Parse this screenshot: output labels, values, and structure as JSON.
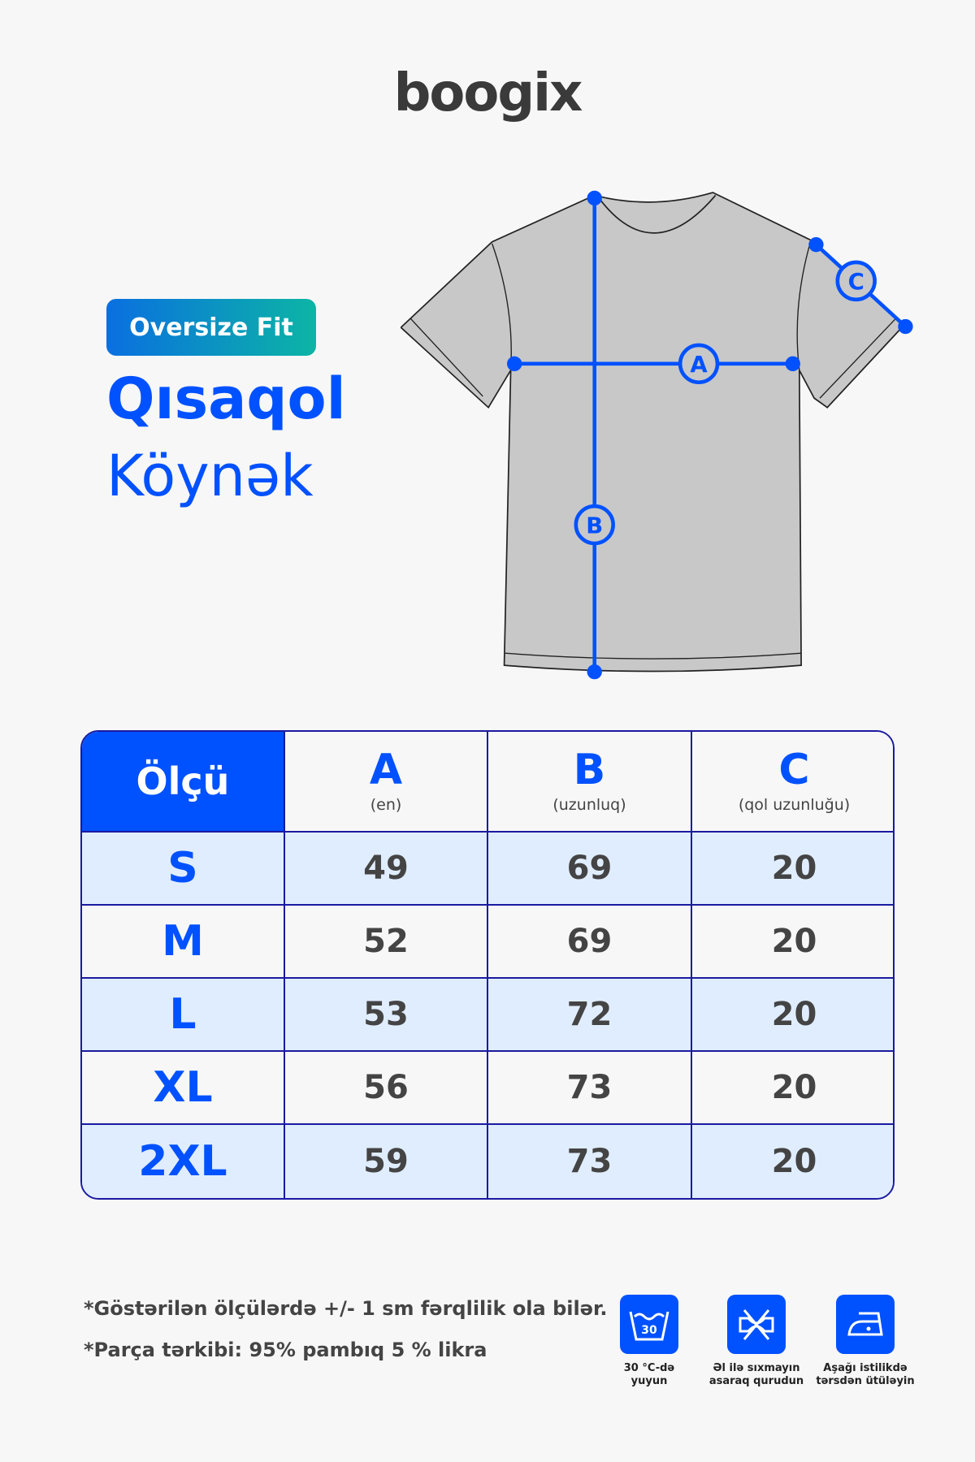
{
  "brand": "boogix",
  "badge": "Oversize Fit",
  "title_line1": "Qısaqol",
  "title_line2": "Köynək",
  "diagram": {
    "labels": [
      "A",
      "B",
      "C"
    ],
    "line_color": "#0051ff",
    "shirt_color": "#c8c8c8"
  },
  "table": {
    "header": {
      "size_label": "Ölçü",
      "columns": [
        {
          "letter": "A",
          "desc": "(en)"
        },
        {
          "letter": "B",
          "desc": "(uzunluq)"
        },
        {
          "letter": "C",
          "desc": "(qol uzunluğu)"
        }
      ]
    },
    "rows": [
      {
        "size": "S",
        "a": "49",
        "b": "69",
        "c": "20"
      },
      {
        "size": "M",
        "a": "52",
        "b": "69",
        "c": "20"
      },
      {
        "size": "L",
        "a": "53",
        "b": "72",
        "c": "20"
      },
      {
        "size": "XL",
        "a": "56",
        "b": "73",
        "c": "20"
      },
      {
        "size": "2XL",
        "a": "59",
        "b": "73",
        "c": "20"
      }
    ]
  },
  "notes": [
    "*Göstərilən ölçülərdə +/- 1 sm fərqlilik ola bilər.",
    "*Parça tərkibi: 95% pambıq 5 % likra"
  ],
  "care": [
    {
      "icon": "wash-30-icon",
      "temp": "30",
      "label1": "30 °C-də",
      "label2": "yuyun"
    },
    {
      "icon": "no-wring-icon",
      "label1": "Əl ilə sıxmayın",
      "label2": "asaraq qurudun"
    },
    {
      "icon": "iron-low-icon",
      "label1": "Aşağı istilikdə",
      "label2": "tərsdən ütüləyin"
    }
  ],
  "colors": {
    "accent": "#0051ff",
    "row_alt": "#e0edff",
    "border": "#1a1aa0"
  }
}
